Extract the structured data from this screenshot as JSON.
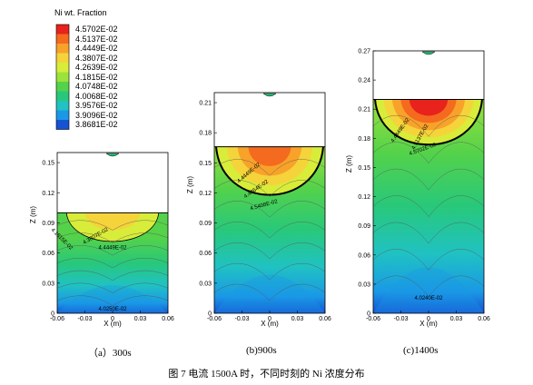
{
  "legend": {
    "title": "Ni wt. Fraction",
    "levels": [
      "4.5702E-02",
      "4.5137E-02",
      "4.4449E-02",
      "4.3807E-02",
      "4.2639E-02",
      "4.1815E-02",
      "4.0748E-02",
      "4.0068E-02",
      "3.9576E-02",
      "3.9096E-02",
      "3.8681E-02"
    ],
    "colors": [
      "#e8221c",
      "#f46a1e",
      "#f8a22a",
      "#f4d43a",
      "#d8ec3a",
      "#9ce23c",
      "#54d24a",
      "#28c87a",
      "#20c2c2",
      "#1a98e6",
      "#1652d4"
    ]
  },
  "captions": {
    "a": "（a）300s",
    "b": "(b)900s",
    "c": "(c)1400s",
    "figure": "图 7  电流 1500A 时，不同时刻的 Ni 浓度分布"
  },
  "chart_data": [
    {
      "type": "heatmap",
      "panel": "a",
      "time": "300s",
      "xlabel": "X (m)",
      "ylabel": "Z (m)",
      "xlim": [
        -0.06,
        0.06
      ],
      "ylim": [
        0,
        0.16
      ],
      "xticks": [
        "-0.06",
        "-0.03",
        "0",
        "0.03",
        "0.06"
      ],
      "yticks": [
        "0",
        "0.03",
        "0.06",
        "0.09",
        "0.12",
        "0.15"
      ],
      "free_surface_z": 0.1,
      "pool_bottom_z": 0.062,
      "pool_half_width": 0.05,
      "contour_labels": [
        "4.3807E-02",
        "4.4449E-02",
        "4.1815E-02",
        "4.0250E-02"
      ]
    },
    {
      "type": "heatmap",
      "panel": "b",
      "time": "900s",
      "xlabel": "X (m)",
      "ylabel": "Z (m)",
      "xlim": [
        -0.06,
        0.06
      ],
      "ylim": [
        0,
        0.22
      ],
      "xticks": [
        "-0.06",
        "-0.03",
        "0",
        "0.03",
        "0.06"
      ],
      "yticks": [
        "0",
        "0.03",
        "0.06",
        "0.09",
        "0.12",
        "0.15",
        "0.18",
        "0.21"
      ],
      "free_surface_z": 0.166,
      "pool_bottom_z": 0.102,
      "pool_half_width": 0.058,
      "contour_labels": [
        "4.4449E-02",
        "4.4864E-02",
        "4.5408E-02"
      ]
    },
    {
      "type": "heatmap",
      "panel": "c",
      "time": "1400s",
      "xlabel": "X (m)",
      "ylabel": "Z (m)",
      "xlim": [
        -0.06,
        0.06
      ],
      "ylim": [
        0,
        0.27
      ],
      "xticks": [
        "-0.06",
        "-0.03",
        "0",
        "0.03",
        "0.06"
      ],
      "yticks": [
        "0",
        "0.03",
        "0.06",
        "0.09",
        "0.12",
        "0.15",
        "0.18",
        "0.21",
        "0.24",
        "0.27"
      ],
      "free_surface_z": 0.22,
      "pool_bottom_z": 0.158,
      "pool_half_width": 0.058,
      "contour_labels": [
        "4.4449E-02",
        "4.5137E-02",
        "4.5702E-02",
        "4.0240E-02"
      ]
    }
  ]
}
